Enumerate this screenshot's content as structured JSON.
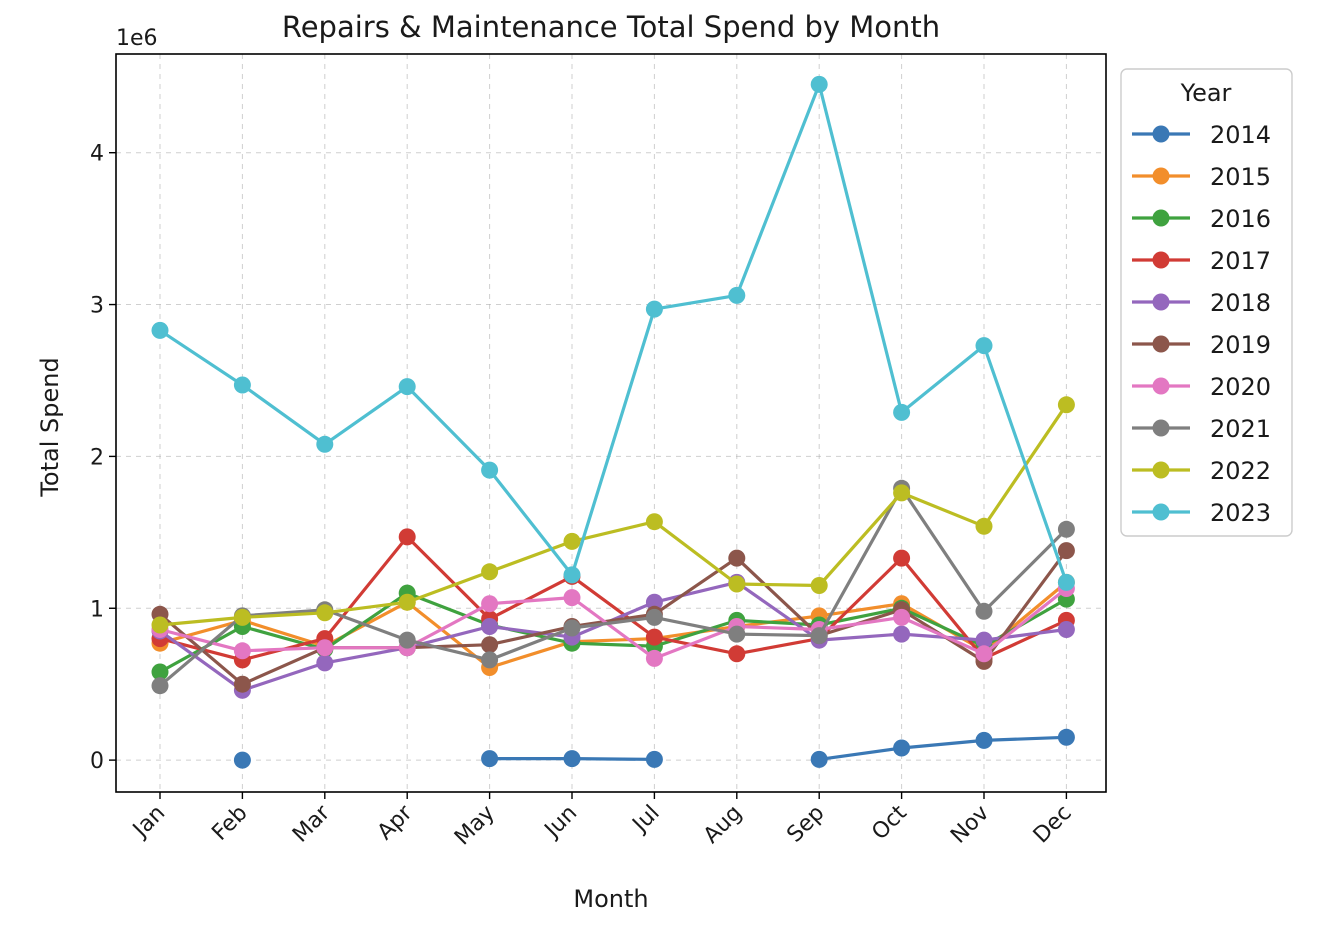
{
  "chart_data": {
    "type": "line",
    "title": "Repairs & Maintenance Total Spend by Month",
    "xlabel": "Month",
    "ylabel": "Total Spend",
    "y_scale_label": "1e6",
    "y_unit_multiplier": 1000000,
    "ylim": [
      -210000,
      4650000
    ],
    "yticks": [
      0,
      1000000,
      2000000,
      3000000,
      4000000
    ],
    "ytick_labels": [
      "0",
      "1",
      "2",
      "3",
      "4"
    ],
    "grid": true,
    "legend_title": "Year",
    "legend_position": "outside-right-top",
    "categories": [
      "Jan",
      "Feb",
      "Mar",
      "Apr",
      "May",
      "Jun",
      "Jul",
      "Aug",
      "Sep",
      "Oct",
      "Nov",
      "Dec"
    ],
    "series": [
      {
        "name": "2014",
        "color": "#3a78b5",
        "values": [
          null,
          0,
          null,
          null,
          10000,
          10000,
          5000,
          null,
          5000,
          80000,
          130000,
          150000
        ]
      },
      {
        "name": "2015",
        "color": "#f28e2b",
        "values": [
          770000,
          920000,
          750000,
          1040000,
          610000,
          780000,
          800000,
          880000,
          950000,
          1030000,
          720000,
          1170000
        ]
      },
      {
        "name": "2016",
        "color": "#3fa23f",
        "values": [
          580000,
          880000,
          730000,
          1100000,
          890000,
          770000,
          750000,
          920000,
          890000,
          1000000,
          750000,
          1060000
        ]
      },
      {
        "name": "2017",
        "color": "#d13b35",
        "values": [
          800000,
          660000,
          800000,
          1470000,
          930000,
          1210000,
          810000,
          700000,
          800000,
          1330000,
          670000,
          920000
        ]
      },
      {
        "name": "2018",
        "color": "#9467bd",
        "values": [
          850000,
          460000,
          640000,
          740000,
          880000,
          810000,
          1040000,
          1170000,
          790000,
          830000,
          790000,
          860000
        ]
      },
      {
        "name": "2019",
        "color": "#8c564b",
        "values": [
          960000,
          500000,
          740000,
          740000,
          760000,
          880000,
          960000,
          1330000,
          820000,
          990000,
          650000,
          1380000
        ]
      },
      {
        "name": "2020",
        "color": "#e377c2",
        "values": [
          860000,
          720000,
          740000,
          740000,
          1030000,
          1070000,
          670000,
          880000,
          860000,
          940000,
          700000,
          1130000
        ]
      },
      {
        "name": "2021",
        "color": "#7f7f7f",
        "values": [
          490000,
          950000,
          990000,
          790000,
          660000,
          870000,
          940000,
          830000,
          820000,
          1790000,
          980000,
          1520000
        ]
      },
      {
        "name": "2022",
        "color": "#bcbd22",
        "values": [
          890000,
          940000,
          970000,
          1040000,
          1240000,
          1440000,
          1570000,
          1160000,
          1150000,
          1760000,
          1540000,
          2340000
        ]
      },
      {
        "name": "2023",
        "color": "#4fbfd1",
        "values": [
          2830000,
          2470000,
          2080000,
          2460000,
          1910000,
          1220000,
          2970000,
          3060000,
          4450000,
          2290000,
          2730000,
          1170000
        ]
      }
    ]
  }
}
